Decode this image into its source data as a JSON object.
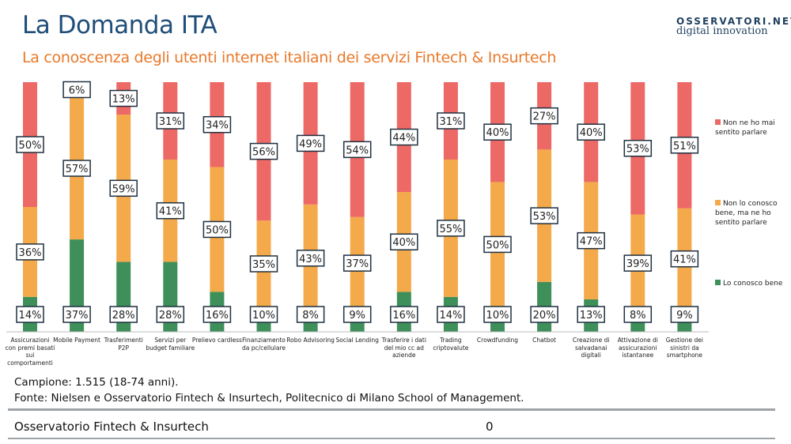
{
  "header": {
    "title": "La Domanda ITA",
    "subtitle": "La conoscenza degli utenti internet italiani dei servizi Fintech & Insurtech",
    "logo_line1": "OSSERVATORI.NET",
    "logo_line2": "digital innovation"
  },
  "chart_data": {
    "type": "bar",
    "stacked": true,
    "ylim": [
      0,
      100
    ],
    "categories": [
      "Assicurazioni con premi basati sui comportamenti",
      "Mobile Payment",
      "Trasferimenti P2P",
      "Servizi per budget familiare",
      "Prelievo cardless",
      "Finanziamento da pc/cellulare",
      "Robo Advisoring",
      "Social Lending",
      "Trasferire i dati del mio cc ad aziende",
      "Trading criptovalute",
      "Crowdfunding",
      "Chatbot",
      "Creazione di salvadanai digitali",
      "Attivazione di assicurazioni istantanee",
      "Gestione dei sinistri da smartphone"
    ],
    "series": [
      {
        "name": "Lo conosco bene",
        "color": "#3e8f5a",
        "values": [
          14,
          37,
          28,
          28,
          16,
          10,
          8,
          9,
          16,
          14,
          10,
          20,
          13,
          8,
          9
        ]
      },
      {
        "name": "Non lo conosco bene, ma ne ho sentito parlare",
        "color": "#f4a94b",
        "values": [
          36,
          57,
          59,
          41,
          50,
          35,
          43,
          37,
          40,
          55,
          50,
          53,
          47,
          39,
          41
        ]
      },
      {
        "name": "Non ne ho mai sentito parlare",
        "color": "#ec6966",
        "values": [
          50,
          6,
          13,
          31,
          34,
          56,
          49,
          54,
          44,
          31,
          40,
          27,
          40,
          53,
          51
        ]
      }
    ],
    "legend": "right"
  },
  "notes": {
    "sample": "Campione: 1.515 (18-74 anni).",
    "source": "Fonte: Nielsen e Osservatorio Fintech & Insurtech, Politecnico di Milano School of Management."
  },
  "footer": {
    "label": "Osservatorio Fintech & Insurtech",
    "page": "0"
  }
}
